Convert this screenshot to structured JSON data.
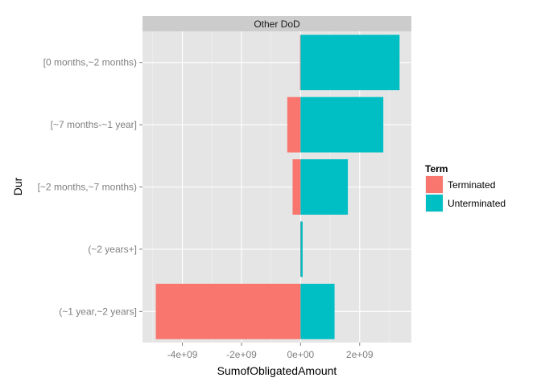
{
  "chart_data": {
    "type": "bar",
    "orientation": "horizontal",
    "stacked": true,
    "facet_label": "Other DoD",
    "xlabel": "SumofObligatedAmount",
    "ylabel": "Dur",
    "categories": [
      "[0 months,~2 months)",
      "[~7 months-~1 year]",
      "[~2 months,~7 months)",
      "(~2 years+]",
      "(~1 year,~2 years]"
    ],
    "series": [
      {
        "name": "Terminated",
        "color": "#F8766D",
        "values": [
          -20000000.0,
          -450000000.0,
          -270000000.0,
          -10000000.0,
          -4900000000.0
        ]
      },
      {
        "name": "Unterminated",
        "color": "#00BFC4",
        "values": [
          3350000000.0,
          2800000000.0,
          1600000000.0,
          70000000.0,
          1150000000.0
        ]
      }
    ],
    "xticks": [
      -4000000000.0,
      -2000000000.0,
      0,
      2000000000.0
    ],
    "xtick_labels": [
      "-4e+09",
      "-2e+09",
      "0e+00",
      "2e+09"
    ],
    "xlim": [
      -5350000000.0,
      3750000000.0
    ],
    "legend": {
      "title": "Term",
      "position": "right"
    },
    "grid": true,
    "panel_background": "#E5E5E5",
    "strip_background": "#CCCCCC"
  }
}
